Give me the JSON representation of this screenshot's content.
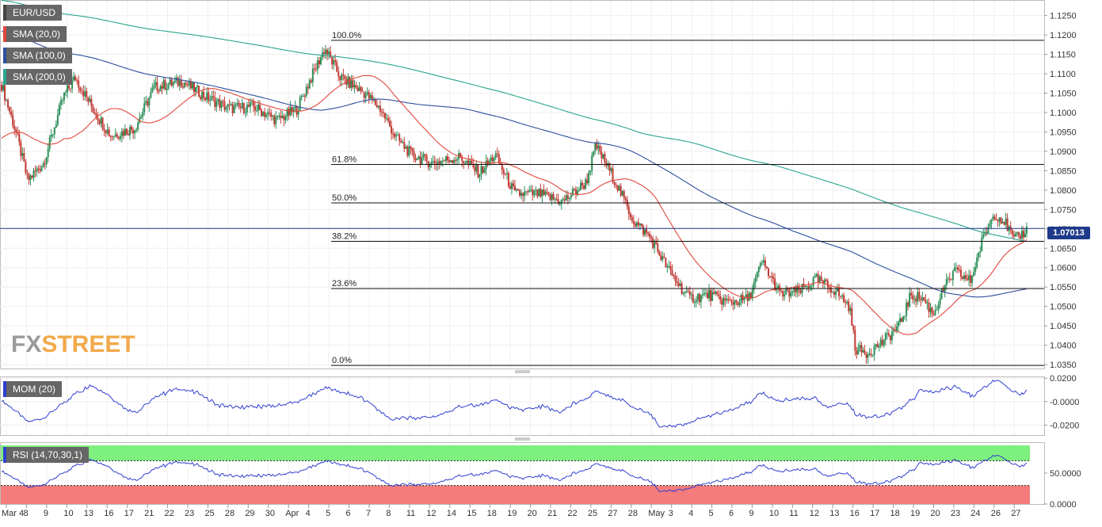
{
  "chart_data": [
    {
      "type": "line",
      "title": "EUR/USD",
      "ylim": [
        1.034,
        1.129
      ],
      "y_ticks": [
        "1.1250",
        "1.1200",
        "1.1150",
        "1.1100",
        "1.1050",
        "1.1000",
        "1.0950",
        "1.0900",
        "1.0850",
        "1.0800",
        "1.0750",
        "1.0700",
        "1.0650",
        "1.0600",
        "1.0550",
        "1.0500",
        "1.0450",
        "1.0400",
        "1.0350"
      ],
      "x_ticks": [
        "Mar 4",
        "8",
        "9",
        "10",
        "13",
        "16",
        "17",
        "21",
        "22",
        "23",
        "25",
        "28",
        "29",
        "30",
        "Apr",
        "4",
        "5",
        "6",
        "7",
        "8",
        "11",
        "12",
        "14",
        "15",
        "18",
        "19",
        "20",
        "21",
        "22",
        "25",
        "27",
        "28",
        "May",
        "3",
        "4",
        "5",
        "6",
        "9",
        "10",
        "11",
        "12",
        "13",
        "16",
        "17",
        "18",
        "19",
        "20",
        "23",
        "24",
        "26",
        "27"
      ],
      "series": [
        {
          "name": "SMA (20,0)",
          "color": "#e0473b"
        },
        {
          "name": "SMA (100,0)",
          "color": "#2c4f9e"
        },
        {
          "name": "SMA (200,0)",
          "color": "#2aa58e"
        }
      ],
      "candle_colors": {
        "up": "#2e8f5a",
        "down": "#c23a34"
      },
      "fibonacci": [
        {
          "label": "100.0%",
          "value": 1.1186
        },
        {
          "label": "61.8%",
          "value": 1.0866
        },
        {
          "label": "50.0%",
          "value": 1.0767
        },
        {
          "label": "38.2%",
          "value": 1.0668
        },
        {
          "label": "23.6%",
          "value": 1.0546
        },
        {
          "label": "0.0%",
          "value": 1.0348
        }
      ],
      "last_price": "1.07013",
      "last_price_value": 1.0701
    },
    {
      "type": "line",
      "title": "MOM (20)",
      "y_ticks": [
        "0.0200",
        "-0.0000",
        "-0.0200"
      ],
      "ylim": [
        -0.0285,
        0.0215
      ],
      "color": "#2f3fd0"
    },
    {
      "type": "line",
      "title": "RSI (14,70,30,1)",
      "y_ticks": [
        "50.0000",
        "0.0000"
      ],
      "ylim": [
        0,
        100
      ],
      "overbought": 70,
      "oversold": 30,
      "color": "#2f3fd0"
    }
  ],
  "watermark": {
    "part1": "FX",
    "part2": "STREET"
  }
}
